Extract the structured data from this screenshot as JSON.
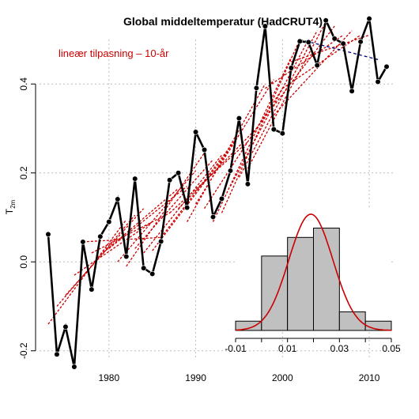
{
  "chart_data": {
    "type": "line",
    "title": "Global middeltemperatur (HadCRUT4)",
    "ylabel": "T",
    "ylabel_subscript": "2m",
    "xlim": [
      1972,
      2013
    ],
    "ylim": [
      -0.22,
      0.5
    ],
    "xticks": [
      1980,
      1990,
      2000,
      2010
    ],
    "yticks": [
      -0.2,
      0.0,
      0.2,
      0.4
    ],
    "ytick_labels": [
      "-0.2",
      "0.0",
      "0.2",
      "0.4"
    ],
    "grid": true,
    "legend": {
      "text": "lineær tilpasning – 10-år",
      "placement": "top-left",
      "color": "#cc0000"
    },
    "series": [
      {
        "x": [
          1973,
          1974,
          1975,
          1976,
          1977,
          1978,
          1979,
          1980,
          1981,
          1982,
          1983,
          1984,
          1985,
          1986,
          1987,
          1988,
          1989,
          1990,
          1991,
          1992,
          1993,
          1994,
          1995,
          1996,
          1997,
          1998,
          1999,
          2000,
          2001,
          2002,
          2003,
          2004,
          2005,
          2006,
          2007,
          2008,
          2009,
          2010,
          2011,
          2012
        ],
        "y": [
          0.062,
          -0.208,
          -0.146,
          -0.236,
          0.045,
          -0.062,
          0.057,
          0.09,
          0.141,
          0.012,
          0.187,
          -0.014,
          -0.027,
          0.046,
          0.184,
          0.2,
          0.122,
          0.292,
          0.252,
          0.101,
          0.142,
          0.205,
          0.323,
          0.175,
          0.391,
          0.53,
          0.298,
          0.289,
          0.436,
          0.496,
          0.494,
          0.442,
          0.543,
          0.502,
          0.491,
          0.384,
          0.495,
          0.547,
          0.405,
          0.439
        ],
        "color": "#000000"
      }
    ],
    "fit_lines": [
      {
        "x": [
          1973,
          1982
        ],
        "y": [
          -0.14,
          0.095
        ]
      },
      {
        "x": [
          1974,
          1983
        ],
        "y": [
          -0.1,
          0.105
        ]
      },
      {
        "x": [
          1975,
          1984
        ],
        "y": [
          -0.075,
          0.12
        ]
      },
      {
        "x": [
          1976,
          1985
        ],
        "y": [
          -0.03,
          0.09
        ]
      },
      {
        "x": [
          1977,
          1986
        ],
        "y": [
          0.045,
          0.055
        ]
      },
      {
        "x": [
          1978,
          1987
        ],
        "y": [
          0.02,
          0.11
        ]
      },
      {
        "x": [
          1979,
          1988
        ],
        "y": [
          0.015,
          0.165
        ]
      },
      {
        "x": [
          1980,
          1989
        ],
        "y": [
          0.03,
          0.17
        ]
      },
      {
        "x": [
          1981,
          1990
        ],
        "y": [
          0.0,
          0.205
        ]
      },
      {
        "x": [
          1982,
          1991
        ],
        "y": [
          -0.01,
          0.245
        ]
      },
      {
        "x": [
          1983,
          1992
        ],
        "y": [
          0.03,
          0.23
        ]
      },
      {
        "x": [
          1984,
          1993
        ],
        "y": [
          0.02,
          0.24
        ]
      },
      {
        "x": [
          1985,
          1994
        ],
        "y": [
          0.025,
          0.255
        ]
      },
      {
        "x": [
          1986,
          1995
        ],
        "y": [
          0.055,
          0.285
        ]
      },
      {
        "x": [
          1987,
          1996
        ],
        "y": [
          0.11,
          0.27
        ]
      },
      {
        "x": [
          1988,
          1997
        ],
        "y": [
          0.12,
          0.3
        ]
      },
      {
        "x": [
          1989,
          1998
        ],
        "y": [
          0.09,
          0.4
        ]
      },
      {
        "x": [
          1990,
          1999
        ],
        "y": [
          0.13,
          0.41
        ]
      },
      {
        "x": [
          1991,
          2000
        ],
        "y": [
          0.12,
          0.39
        ]
      },
      {
        "x": [
          1992,
          2001
        ],
        "y": [
          0.09,
          0.46
        ]
      },
      {
        "x": [
          1993,
          2002
        ],
        "y": [
          0.11,
          0.5
        ]
      },
      {
        "x": [
          1994,
          2003
        ],
        "y": [
          0.17,
          0.5
        ]
      },
      {
        "x": [
          1995,
          2004
        ],
        "y": [
          0.19,
          0.52
        ]
      },
      {
        "x": [
          1996,
          2005
        ],
        "y": [
          0.21,
          0.54
        ]
      },
      {
        "x": [
          1997,
          2006
        ],
        "y": [
          0.3,
          0.53
        ]
      },
      {
        "x": [
          1998,
          2007
        ],
        "y": [
          0.39,
          0.51
        ]
      },
      {
        "x": [
          1999,
          2008
        ],
        "y": [
          0.33,
          0.52
        ]
      },
      {
        "x": [
          2000,
          2009
        ],
        "y": [
          0.39,
          0.51
        ]
      },
      {
        "x": [
          2001,
          2010
        ],
        "y": [
          0.45,
          0.51
        ]
      }
    ],
    "fit_lines_color": "#cc0000",
    "recent_fit": {
      "x": [
        2002,
        2011
      ],
      "y": [
        0.5,
        0.455
      ],
      "color": "#000080"
    },
    "inset_histogram": {
      "type": "bar",
      "xlim": [
        -0.01,
        0.05
      ],
      "xticks": [
        -0.01,
        0.0,
        0.01,
        0.02,
        0.03,
        0.04,
        0.05
      ],
      "xtick_labels": [
        "-0.01",
        "",
        "0.01",
        "",
        "0.03",
        "",
        "0.05"
      ],
      "bin_edges": [
        -0.01,
        0.0,
        0.01,
        0.02,
        0.03,
        0.04,
        0.05
      ],
      "counts": [
        1,
        8,
        10,
        11,
        2,
        1
      ],
      "bar_color": "#c0c0c0",
      "curve_color": "#cc0000",
      "curve": {
        "mean": 0.019,
        "sd": 0.0085,
        "peak": 12.5
      },
      "ylim": [
        0,
        13
      ]
    }
  }
}
